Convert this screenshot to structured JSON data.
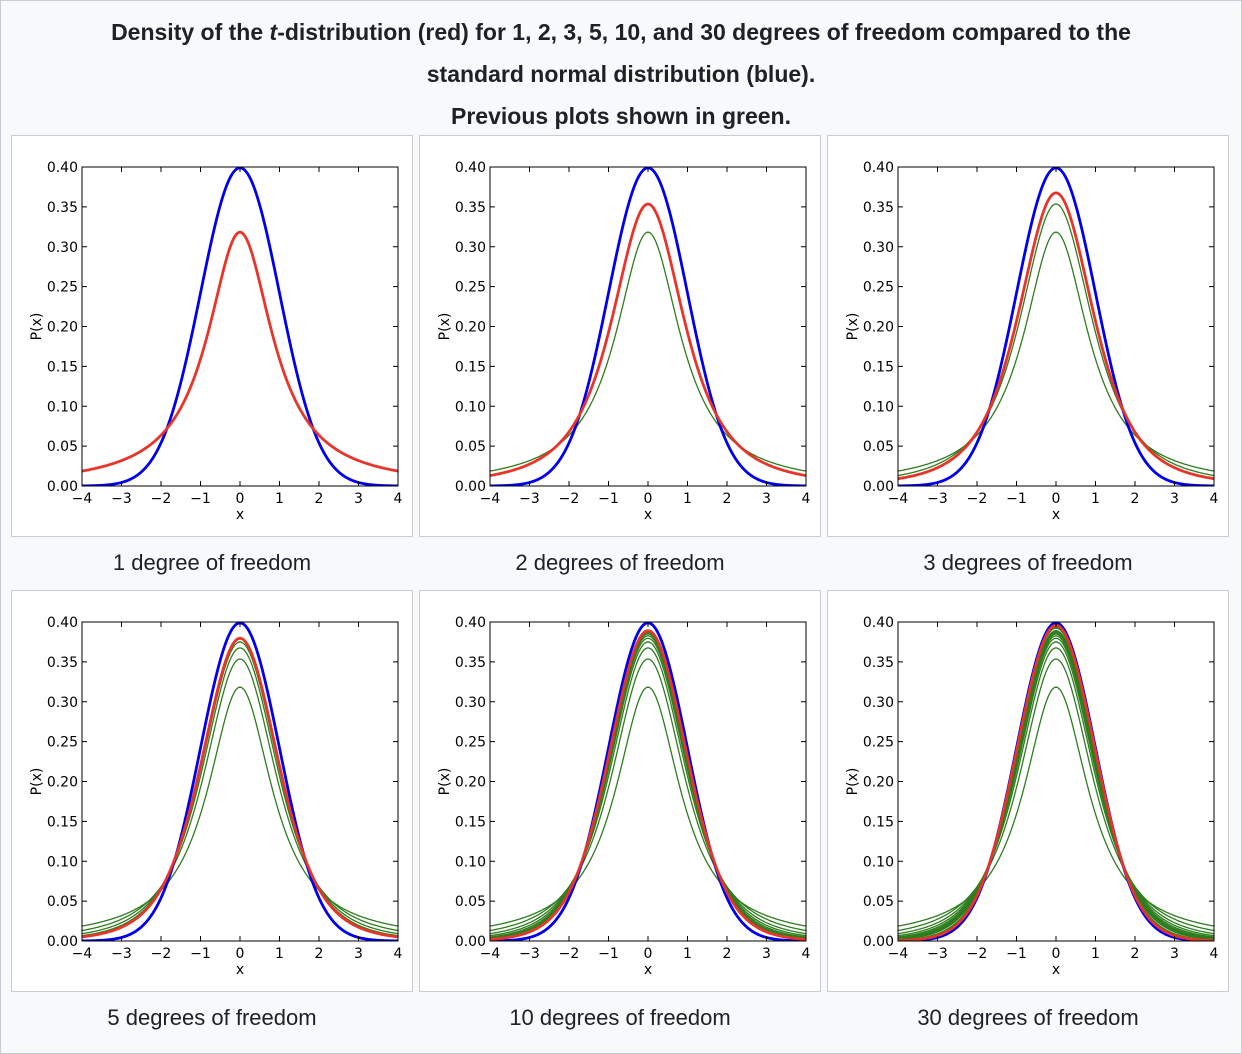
{
  "caption": {
    "line1_pre": "Density of the ",
    "line1_italic": "t",
    "line1_post": "-distribution (red) for 1, 2, 3, 5, 10, and 30 degrees of freedom compared to the",
    "line2": "standard normal distribution (blue).",
    "line3": "Previous plots shown in green."
  },
  "colors": {
    "normal": "#0000ee",
    "current": "#e8352a",
    "previous": "#2e7d1e"
  },
  "chart_data": [
    {
      "type": "line",
      "df": 1,
      "label": "1 degree of freedom",
      "xlabel": "x",
      "ylabel": "P(x)",
      "xlim": [
        -4,
        4
      ],
      "ylim": [
        0,
        0.4
      ],
      "xticks": [
        "−4",
        "−3",
        "−2",
        "−1",
        "0",
        "1",
        "2",
        "3",
        "4"
      ],
      "yticks": [
        "0.00",
        "0.05",
        "0.10",
        "0.15",
        "0.20",
        "0.25",
        "0.30",
        "0.35",
        "0.40"
      ],
      "series": [
        {
          "kind": "normal"
        },
        {
          "kind": "t",
          "df": 1,
          "role": "current"
        }
      ]
    },
    {
      "type": "line",
      "df": 2,
      "label": "2 degrees of freedom",
      "xlabel": "x",
      "ylabel": "P(x)",
      "xlim": [
        -4,
        4
      ],
      "ylim": [
        0,
        0.4
      ],
      "xticks": [
        "−4",
        "−3",
        "−2",
        "−1",
        "0",
        "1",
        "2",
        "3",
        "4"
      ],
      "yticks": [
        "0.00",
        "0.05",
        "0.10",
        "0.15",
        "0.20",
        "0.25",
        "0.30",
        "0.35",
        "0.40"
      ],
      "series": [
        {
          "kind": "t",
          "df": 1,
          "role": "previous"
        },
        {
          "kind": "normal"
        },
        {
          "kind": "t",
          "df": 2,
          "role": "current"
        }
      ]
    },
    {
      "type": "line",
      "df": 3,
      "label": "3 degrees of freedom",
      "xlabel": "x",
      "ylabel": "P(x)",
      "xlim": [
        -4,
        4
      ],
      "ylim": [
        0,
        0.4
      ],
      "xticks": [
        "−4",
        "−3",
        "−2",
        "−1",
        "0",
        "1",
        "2",
        "3",
        "4"
      ],
      "yticks": [
        "0.00",
        "0.05",
        "0.10",
        "0.15",
        "0.20",
        "0.25",
        "0.30",
        "0.35",
        "0.40"
      ],
      "series": [
        {
          "kind": "t",
          "df": 1,
          "role": "previous"
        },
        {
          "kind": "t",
          "df": 2,
          "role": "previous"
        },
        {
          "kind": "normal"
        },
        {
          "kind": "t",
          "df": 3,
          "role": "current"
        }
      ]
    },
    {
      "type": "line",
      "df": 5,
      "label": "5 degrees of freedom",
      "xlabel": "x",
      "ylabel": "P(x)",
      "xlim": [
        -4,
        4
      ],
      "ylim": [
        0,
        0.4
      ],
      "xticks": [
        "−4",
        "−3",
        "−2",
        "−1",
        "0",
        "1",
        "2",
        "3",
        "4"
      ],
      "yticks": [
        "0.00",
        "0.05",
        "0.10",
        "0.15",
        "0.20",
        "0.25",
        "0.30",
        "0.35",
        "0.40"
      ],
      "series": [
        {
          "kind": "t",
          "df": 1,
          "role": "previous"
        },
        {
          "kind": "t",
          "df": 2,
          "role": "previous"
        },
        {
          "kind": "t",
          "df": 3,
          "role": "previous"
        },
        {
          "kind": "t",
          "df": 4,
          "role": "previous"
        },
        {
          "kind": "normal"
        },
        {
          "kind": "t",
          "df": 5,
          "role": "current"
        }
      ]
    },
    {
      "type": "line",
      "df": 10,
      "label": "10 degrees of freedom",
      "xlabel": "x",
      "ylabel": "P(x)",
      "xlim": [
        -4,
        4
      ],
      "ylim": [
        0,
        0.4
      ],
      "xticks": [
        "−4",
        "−3",
        "−2",
        "−1",
        "0",
        "1",
        "2",
        "3",
        "4"
      ],
      "yticks": [
        "0.00",
        "0.05",
        "0.10",
        "0.15",
        "0.20",
        "0.25",
        "0.30",
        "0.35",
        "0.40"
      ],
      "series": [
        {
          "kind": "t",
          "df": 1,
          "role": "previous"
        },
        {
          "kind": "t",
          "df": 2,
          "role": "previous"
        },
        {
          "kind": "t",
          "df": 3,
          "role": "previous"
        },
        {
          "kind": "t",
          "df": 4,
          "role": "previous"
        },
        {
          "kind": "t",
          "df": 5,
          "role": "previous"
        },
        {
          "kind": "t",
          "df": 6,
          "role": "previous"
        },
        {
          "kind": "t",
          "df": 7,
          "role": "previous"
        },
        {
          "kind": "t",
          "df": 8,
          "role": "previous"
        },
        {
          "kind": "t",
          "df": 9,
          "role": "previous"
        },
        {
          "kind": "normal"
        },
        {
          "kind": "t",
          "df": 10,
          "role": "current"
        }
      ]
    },
    {
      "type": "line",
      "df": 30,
      "label": "30 degrees of freedom",
      "xlabel": "x",
      "ylabel": "P(x)",
      "xlim": [
        -4,
        4
      ],
      "ylim": [
        0,
        0.4
      ],
      "xticks": [
        "−4",
        "−3",
        "−2",
        "−1",
        "0",
        "1",
        "2",
        "3",
        "4"
      ],
      "yticks": [
        "0.00",
        "0.05",
        "0.10",
        "0.15",
        "0.20",
        "0.25",
        "0.30",
        "0.35",
        "0.40"
      ],
      "series": [
        {
          "kind": "t",
          "df": 1,
          "role": "previous"
        },
        {
          "kind": "t",
          "df": 2,
          "role": "previous"
        },
        {
          "kind": "t",
          "df": 3,
          "role": "previous"
        },
        {
          "kind": "t",
          "df": 4,
          "role": "previous"
        },
        {
          "kind": "t",
          "df": 5,
          "role": "previous"
        },
        {
          "kind": "t",
          "df": 6,
          "role": "previous"
        },
        {
          "kind": "t",
          "df": 7,
          "role": "previous"
        },
        {
          "kind": "t",
          "df": 8,
          "role": "previous"
        },
        {
          "kind": "t",
          "df": 9,
          "role": "previous"
        },
        {
          "kind": "t",
          "df": 10,
          "role": "previous"
        },
        {
          "kind": "t",
          "df": 15,
          "role": "previous"
        },
        {
          "kind": "t",
          "df": 20,
          "role": "previous"
        },
        {
          "kind": "t",
          "df": 25,
          "role": "previous"
        },
        {
          "kind": "normal"
        },
        {
          "kind": "t",
          "df": 30,
          "role": "current"
        }
      ]
    }
  ]
}
